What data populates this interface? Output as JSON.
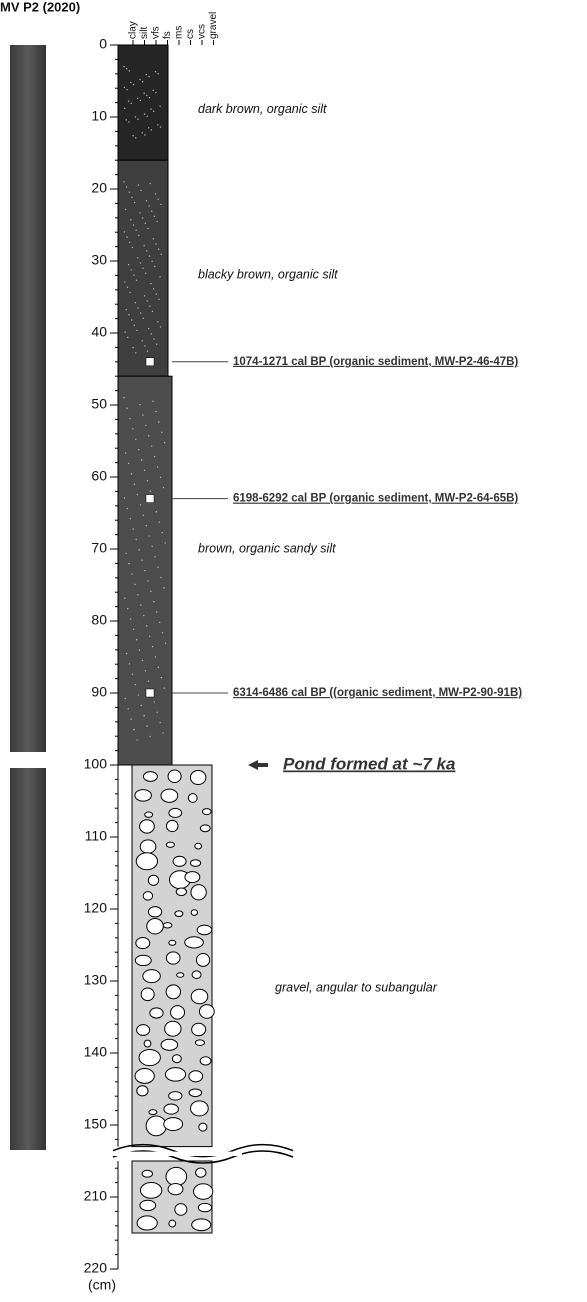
{
  "title": "MV P2 (2020)",
  "depth_axis": {
    "ticks": [
      0,
      10,
      20,
      30,
      40,
      50,
      60,
      70,
      80,
      90,
      100,
      110,
      120,
      130,
      140,
      150,
      210,
      220
    ],
    "unit": "(cm)"
  },
  "grain_sizes": [
    "clay",
    "silt",
    "vfs",
    "fs",
    "ms",
    "cs",
    "vcs",
    "gravel"
  ],
  "units": [
    {
      "top": 0,
      "bottom": 16,
      "description": "dark brown, organic silt"
    },
    {
      "top": 16,
      "bottom": 46,
      "description": "blacky brown, organic silt"
    },
    {
      "top": 46,
      "bottom": 100,
      "description": "brown, organic sandy silt"
    },
    {
      "top": 100,
      "bottom": 215,
      "description": "gravel, angular to subangular"
    }
  ],
  "dates": [
    {
      "depth": 44,
      "label": "1074-1271 cal BP (organic sediment, MW-P2-46-47B)"
    },
    {
      "depth": 63,
      "label": "6198-6292 cal BP (organic sediment, MW-P2-64-65B)"
    },
    {
      "depth": 90,
      "label": "6314-6486 cal BP ((organic sediment, MW-P2-90-91B)"
    }
  ],
  "annotation": {
    "depth": 100,
    "text": "Pond formed at ~7 ka"
  }
}
